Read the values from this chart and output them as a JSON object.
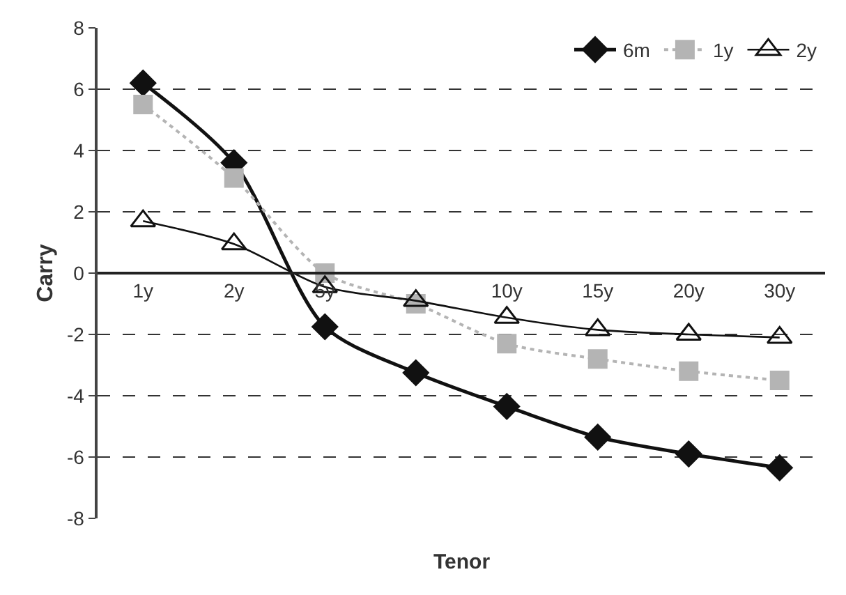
{
  "chart_data": {
    "type": "line",
    "xlabel": "Tenor",
    "ylabel": "Carry",
    "categories": [
      "1y",
      "2y",
      "5y",
      null,
      "10y",
      "15y",
      "20y",
      "30y"
    ],
    "series": [
      {
        "name": "6m",
        "color": "#111111",
        "marker": "diamond",
        "line_style": "solid",
        "values": [
          6.2,
          3.6,
          -1.75,
          -3.25,
          -4.35,
          -5.35,
          -5.9,
          -6.35
        ]
      },
      {
        "name": "1y",
        "color": "#b4b4b4",
        "marker": "square",
        "line_style": "dotted",
        "values": [
          5.5,
          3.1,
          0,
          -1.0,
          -2.3,
          -2.8,
          -3.2,
          -3.5
        ]
      },
      {
        "name": "2y",
        "color": "#111111",
        "marker": "triangle",
        "line_style": "solid",
        "values": [
          1.7,
          0.95,
          -0.45,
          -0.9,
          -1.45,
          -1.85,
          -2.0,
          -2.1
        ]
      }
    ],
    "ylim": [
      -8,
      8
    ],
    "yticks": [
      -8,
      -6,
      -4,
      -2,
      0,
      2,
      4,
      6,
      8
    ],
    "grid": "y",
    "legend": "top right"
  }
}
